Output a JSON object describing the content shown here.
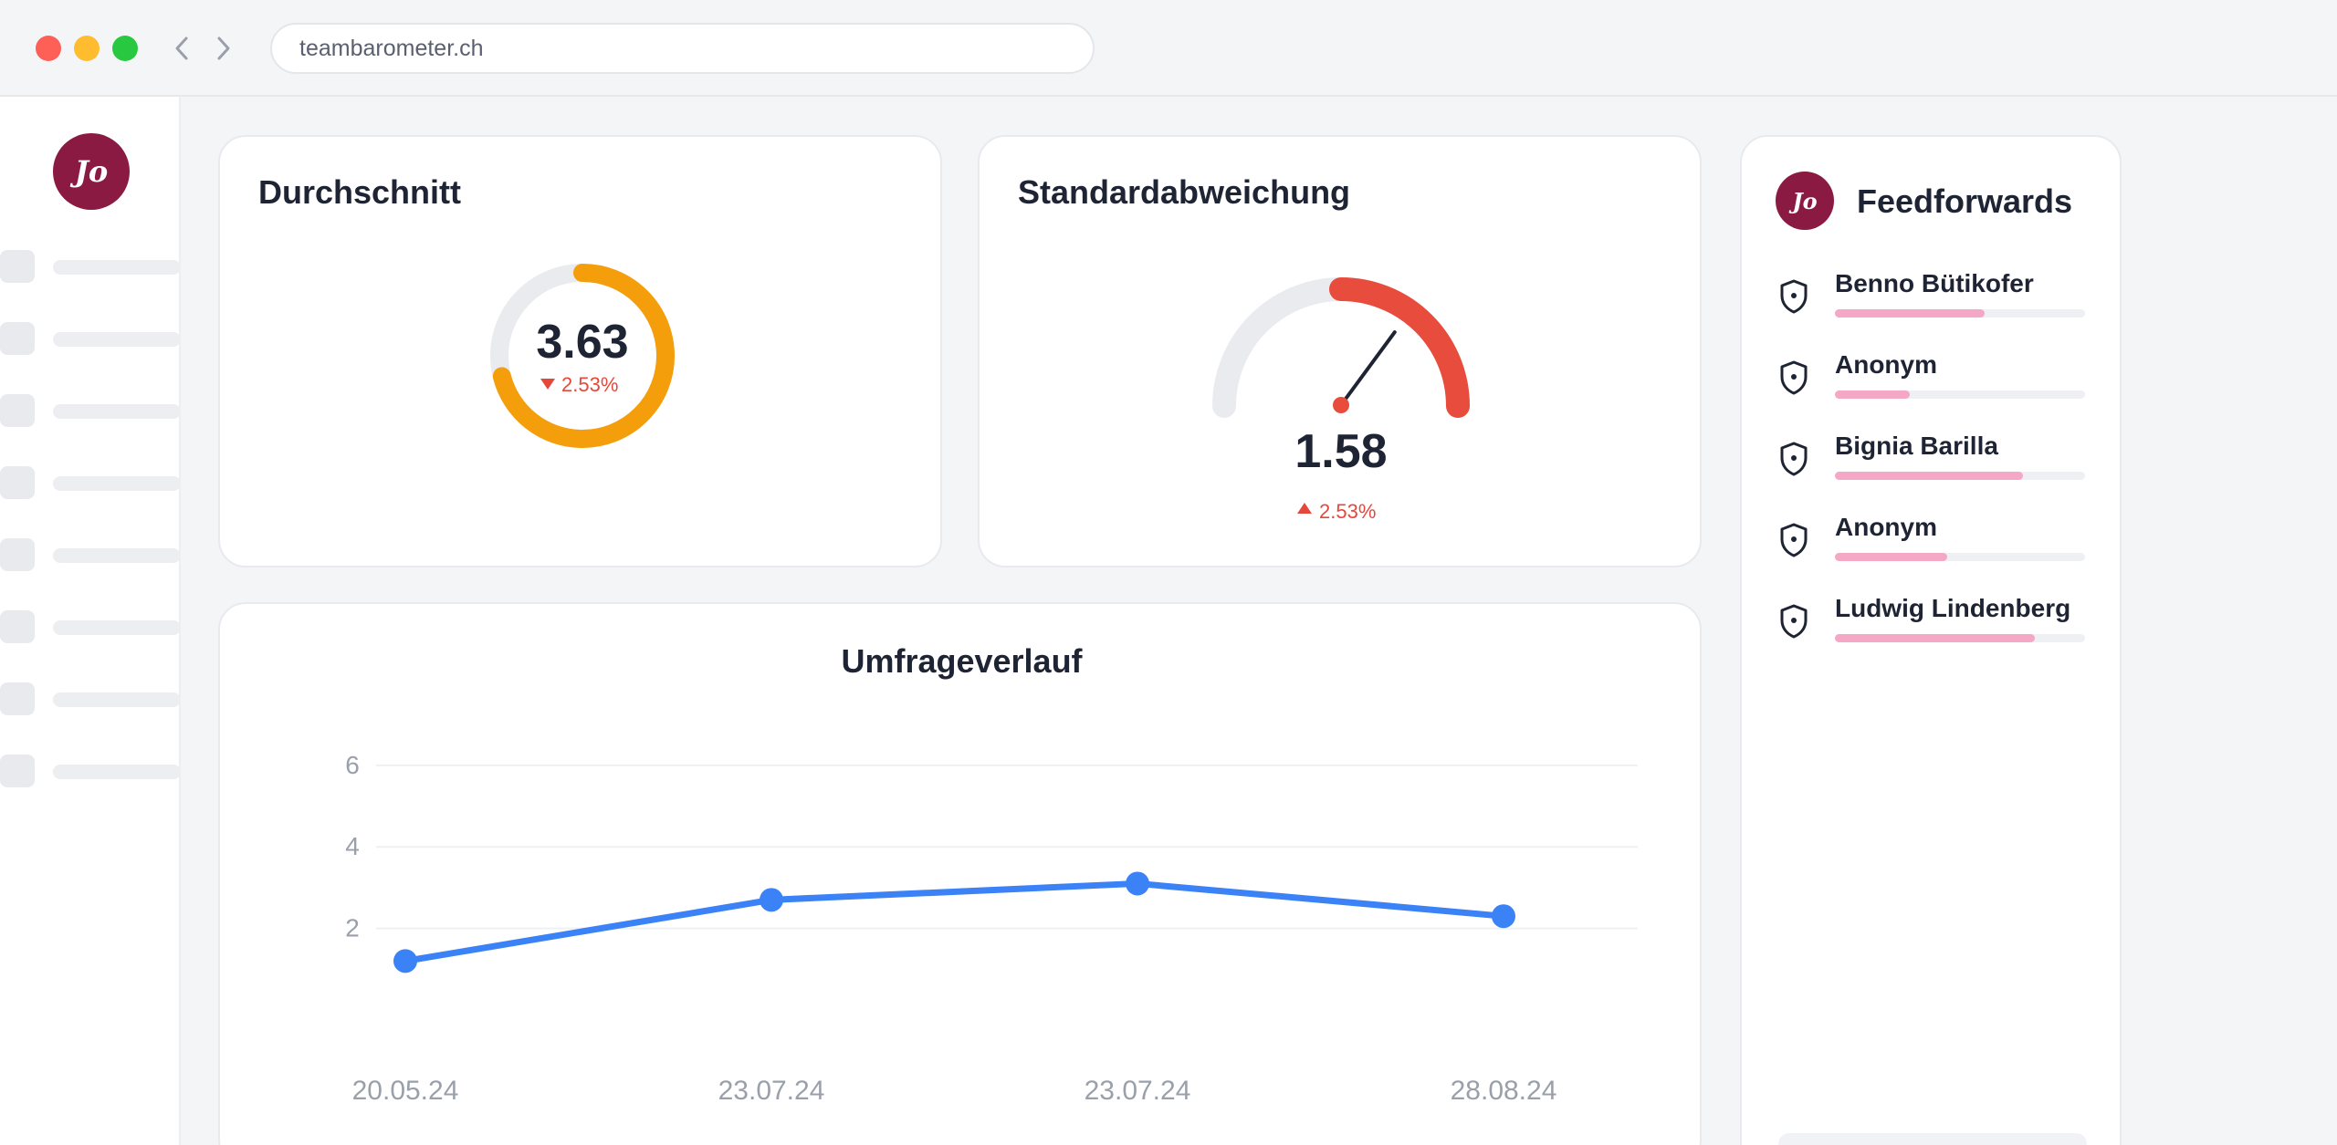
{
  "browser": {
    "url": "teambarometer.ch"
  },
  "user": {
    "initials": "Jo"
  },
  "sidebar": {
    "items": [
      {},
      {},
      {},
      {},
      {},
      {},
      {},
      {}
    ]
  },
  "average": {
    "title": "Durchschnitt",
    "value": "3.63",
    "change": "2.53%",
    "change_direction": "down",
    "ring_fraction": 0.71,
    "ring_color": "#f59e0b",
    "change_color": "#e5483b"
  },
  "stddev": {
    "title": "Standardabweichung",
    "value": "1.58",
    "change": "2.53%",
    "change_direction": "up",
    "gauge_fraction": 0.5,
    "needle_fraction": 0.7,
    "gauge_color": "#e84c3d"
  },
  "history": {
    "chart_data": {
      "type": "line",
      "title": "Umfrageverlauf",
      "categories": [
        "20.05.24",
        "23.07.24",
        "23.07.24",
        "28.08.24"
      ],
      "values": [
        1.2,
        2.7,
        3.1,
        2.3
      ],
      "yticks": [
        2,
        4,
        6
      ],
      "ylim": [
        0,
        6.6
      ],
      "color": "#3b82f6",
      "grid": true
    }
  },
  "feedforwards": {
    "title": "Feedforwards",
    "items": [
      {
        "name": "Benno Bütikofer",
        "progress": 0.6
      },
      {
        "name": "Anonym",
        "progress": 0.3
      },
      {
        "name": "Bignia Barilla",
        "progress": 0.75
      },
      {
        "name": "Anonym",
        "progress": 0.45
      },
      {
        "name": "Ludwig Lindenberg",
        "progress": 0.8
      }
    ]
  }
}
